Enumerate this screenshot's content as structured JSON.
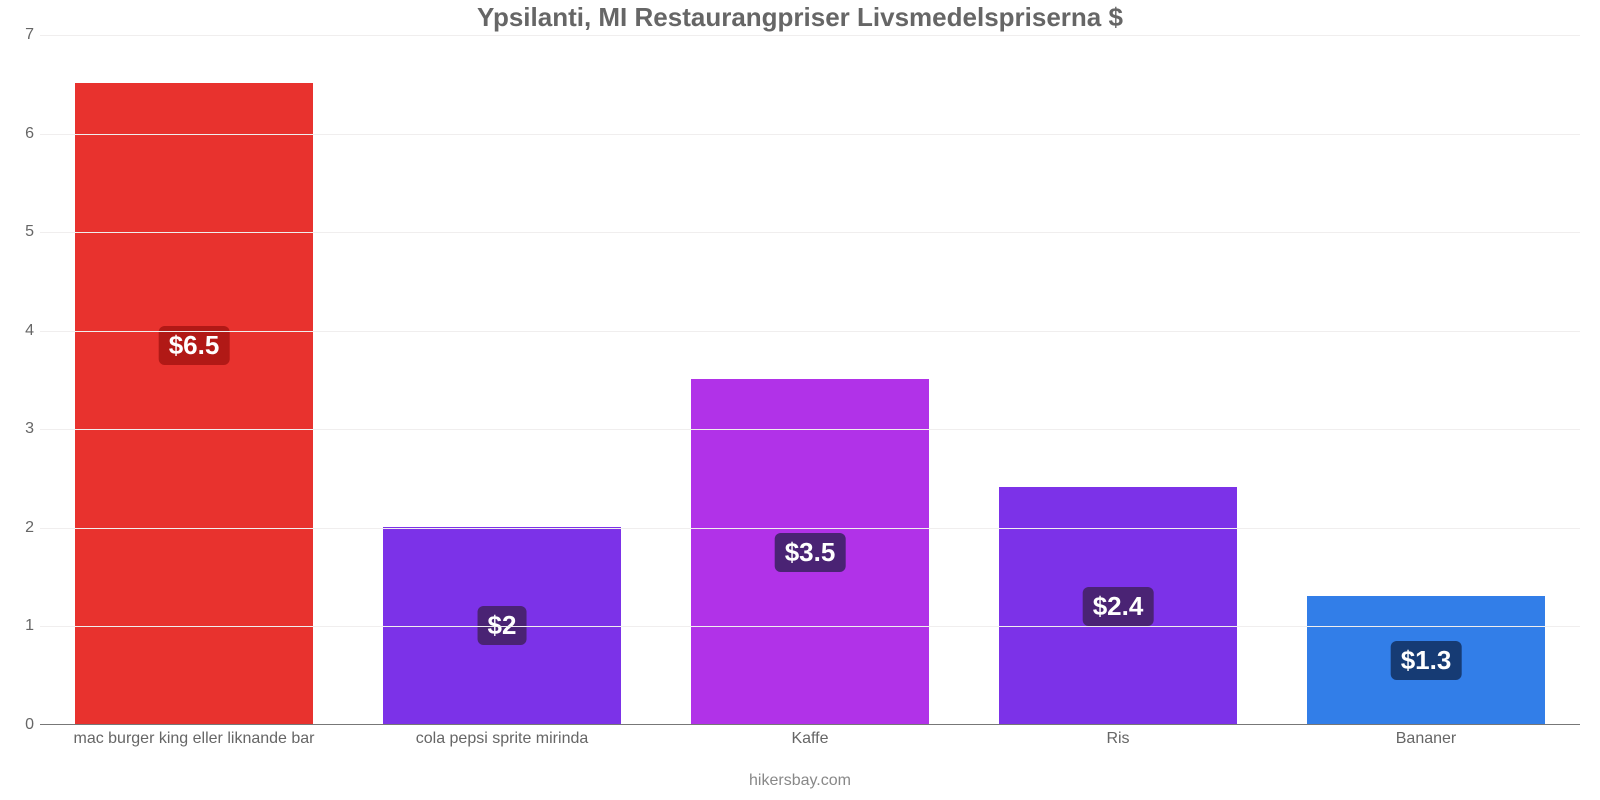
{
  "chart": {
    "type": "bar",
    "title": "Ypsilanti, MI Restaurangpriser Livsmedelspriserna $",
    "title_color": "#666666",
    "title_fontsize": 26,
    "background_color": "#ffffff",
    "grid_color": "#f0eeee",
    "axis_color": "#777777",
    "tick_color": "#666666",
    "tick_fontsize": 16,
    "ylim_min": 0,
    "ylim_max": 7,
    "ytick_step": 1,
    "bar_width_ratio": 0.77,
    "credit": "hikersbay.com",
    "categories": [
      "mac burger king eller liknande bar",
      "cola pepsi sprite mirinda",
      "Kaffe",
      "Ris",
      "Bananer"
    ],
    "values": [
      6.5,
      2.0,
      3.5,
      2.4,
      1.3
    ],
    "value_labels": [
      "$6.5",
      "$2",
      "$3.5",
      "$2.4",
      "$1.3"
    ],
    "bar_colors": [
      "#e8322e",
      "#7c32e8",
      "#b132e8",
      "#7c32e8",
      "#327ee8"
    ],
    "label_bg_colors": [
      "#b11916",
      "#4a2374",
      "#4a2374",
      "#4a2374",
      "#163b74"
    ],
    "label_fontsize": 26
  }
}
